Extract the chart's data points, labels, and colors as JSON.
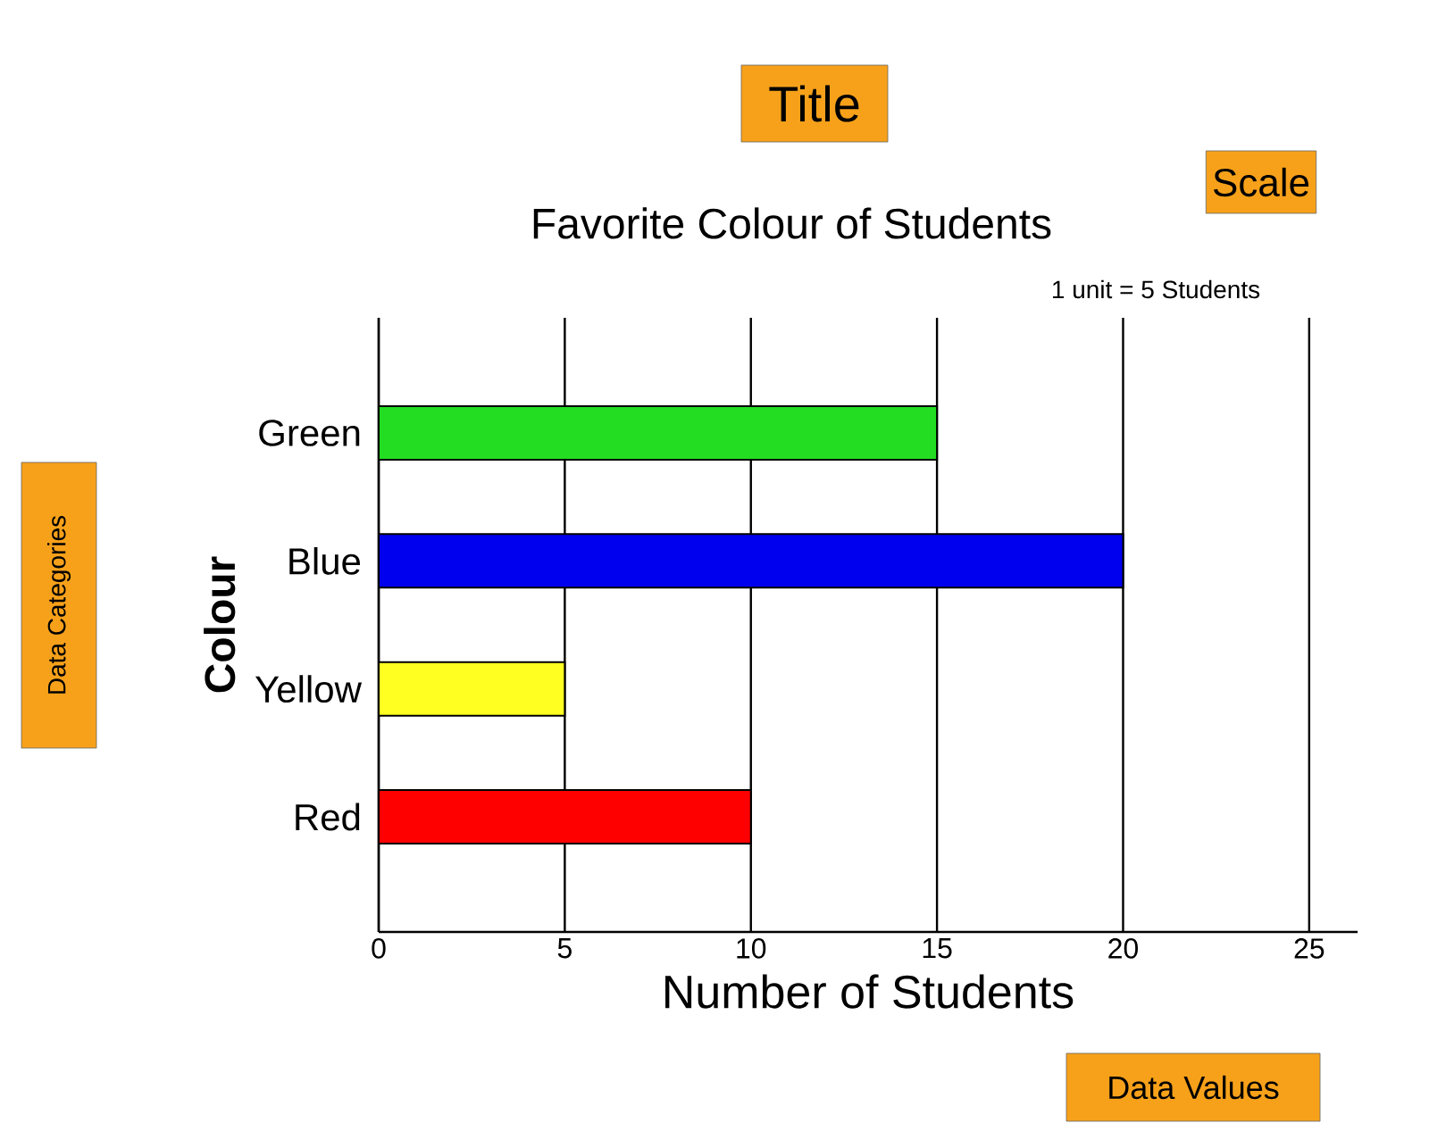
{
  "chart_data": {
    "type": "bar",
    "orientation": "horizontal",
    "title": "Favorite Colour of Students",
    "xlabel": "Number of Students",
    "ylabel": "Colour",
    "categories": [
      "Green",
      "Blue",
      "Yellow",
      "Red"
    ],
    "values": [
      15,
      20,
      5,
      10
    ],
    "colors": [
      "#22dd22",
      "#0000ee",
      "#ffff22",
      "#ff0000"
    ],
    "xlim": [
      0,
      26.3
    ],
    "xticks": [
      0,
      5,
      10,
      15,
      20,
      25
    ],
    "grid": "x",
    "annotations": [
      "Title",
      "Scale",
      "1 unit = 5 Students",
      "Data Categories",
      "Data Values"
    ]
  }
}
